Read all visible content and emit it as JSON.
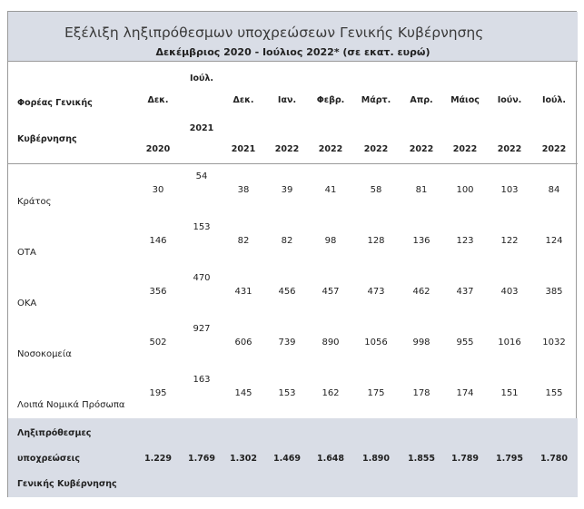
{
  "title": "Εξέλιξη ληξιπρόθεσμων υποχρεώσεων Γενικής Κυβέρνησης",
  "subtitle": "Δεκέμβριος 2020 - Ιούλιος 2022* (σε εκατ. ευρώ)",
  "header": {
    "entity_line1": "Φορέας Γενικής",
    "entity_line2": "Κυβέρνησης",
    "columns": [
      {
        "month": "Δεκ.",
        "year": "2020"
      },
      {
        "month": "Ιούλ.",
        "year": "2021"
      },
      {
        "month": "Δεκ.",
        "year": "2021"
      },
      {
        "month": "Ιαν.",
        "year": "2022"
      },
      {
        "month": "Φεβρ.",
        "year": "2022"
      },
      {
        "month": "Μάρτ.",
        "year": "2022"
      },
      {
        "month": "Απρ.",
        "year": "2022"
      },
      {
        "month": "Μάιος",
        "year": "2022"
      },
      {
        "month": "Ιούν.",
        "year": "2022"
      },
      {
        "month": "Ιούλ.",
        "year": "2022"
      }
    ]
  },
  "rows": [
    {
      "label": "Κράτος",
      "values": [
        "30",
        "54",
        "38",
        "39",
        "41",
        "58",
        "81",
        "100",
        "103",
        "84"
      ]
    },
    {
      "label": "ΟΤΑ",
      "values": [
        "146",
        "153",
        "82",
        "82",
        "98",
        "128",
        "136",
        "123",
        "122",
        "124"
      ]
    },
    {
      "label": "ΟΚΑ",
      "values": [
        "356",
        "470",
        "431",
        "456",
        "457",
        "473",
        "462",
        "437",
        "403",
        "385"
      ]
    },
    {
      "label": "Νοσοκομεία",
      "values": [
        "502",
        "927",
        "606",
        "739",
        "890",
        "1056",
        "998",
        "955",
        "1016",
        "1032"
      ]
    },
    {
      "label": "Λοιπά Νομικά Πρόσωπα",
      "values": [
        "195",
        "163",
        "145",
        "153",
        "162",
        "175",
        "178",
        "174",
        "151",
        "155"
      ]
    }
  ],
  "total": {
    "label_line1": "Ληξιπρόθεσμες",
    "label_line2": "υποχρεώσεις",
    "label_line3": "Γενικής Κυβέρνησης",
    "values": [
      "1.229",
      "1.769",
      "1.302",
      "1.469",
      "1.648",
      "1.890",
      "1.855",
      "1.789",
      "1.795",
      "1.780"
    ]
  }
}
